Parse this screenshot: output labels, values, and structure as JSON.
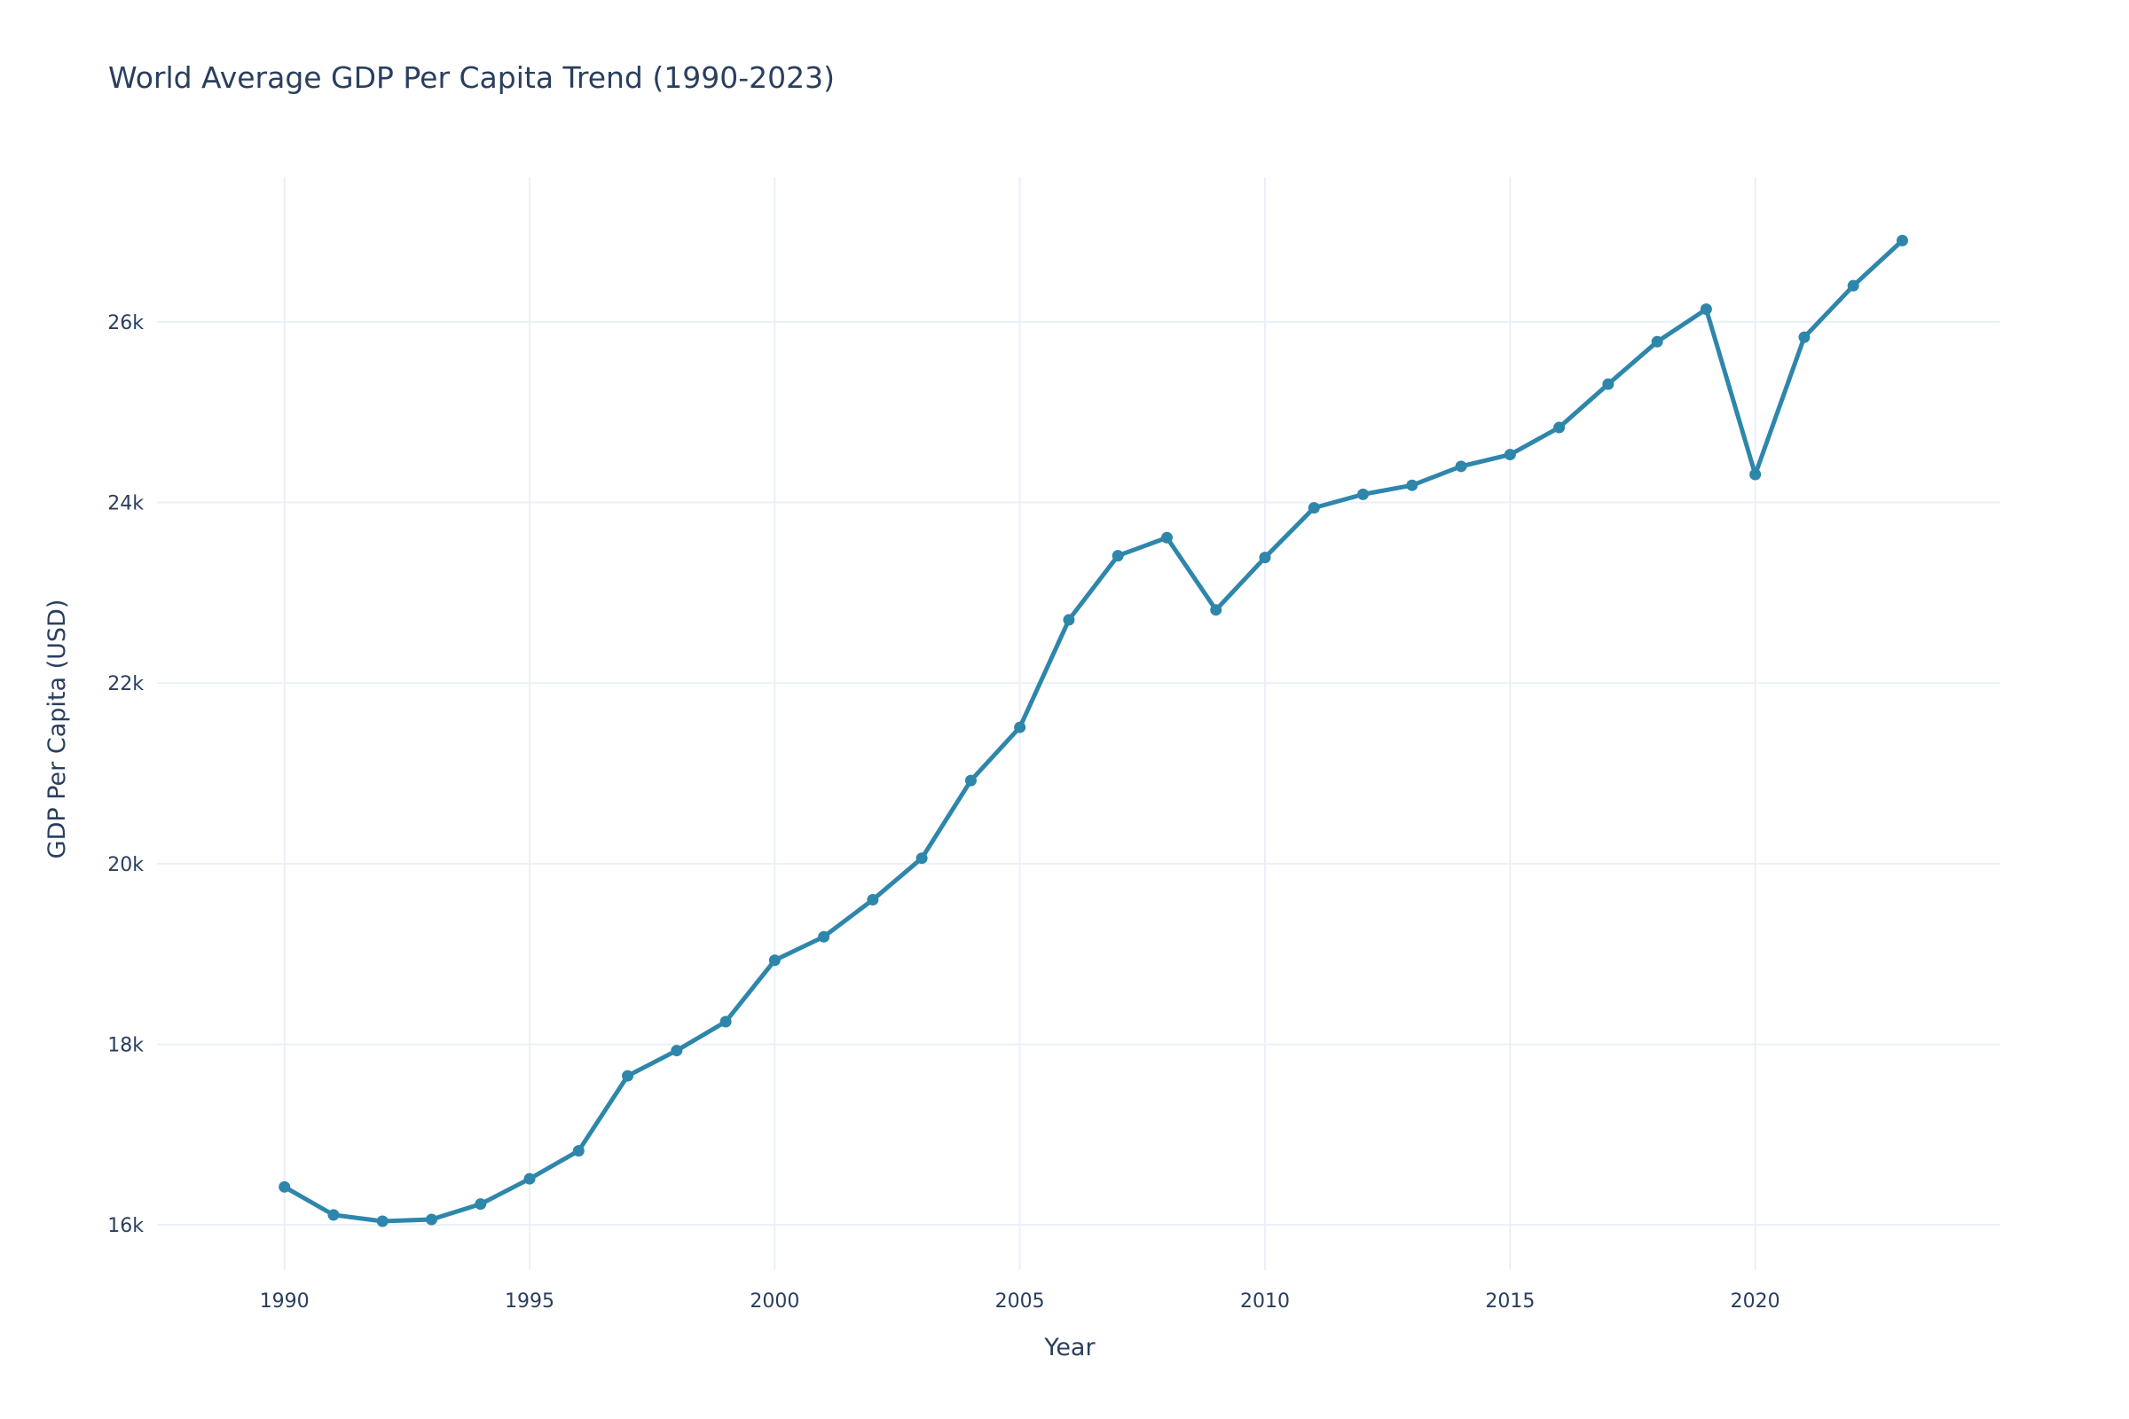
{
  "chart_data": {
    "type": "line",
    "title": "World Average GDP Per Capita Trend (1990-2023)",
    "xlabel": "Year",
    "ylabel": "GDP Per Capita (USD)",
    "xlim": [
      1987.4,
      2025
    ],
    "ylim": [
      15500,
      27600
    ],
    "x_ticks": [
      1990,
      1995,
      2000,
      2005,
      2010,
      2015,
      2020
    ],
    "y_ticks": [
      16000,
      18000,
      20000,
      22000,
      24000,
      26000
    ],
    "y_tick_labels": [
      "16k",
      "18k",
      "20k",
      "22k",
      "24k",
      "26k"
    ],
    "grid": true,
    "legend": "none",
    "series_color": "#2e86ab",
    "x": [
      1990,
      1991,
      1992,
      1993,
      1994,
      1995,
      1996,
      1997,
      1998,
      1999,
      2000,
      2001,
      2002,
      2003,
      2004,
      2005,
      2006,
      2007,
      2008,
      2009,
      2010,
      2011,
      2012,
      2013,
      2014,
      2015,
      2016,
      2017,
      2018,
      2019,
      2020,
      2021,
      2022,
      2023
    ],
    "series": [
      {
        "values": [
          16420,
          16110,
          16040,
          16060,
          16230,
          16510,
          16820,
          17650,
          17930,
          18250,
          18930,
          19190,
          19600,
          20060,
          20920,
          21510,
          22700,
          23410,
          23610,
          22810,
          23390,
          23940,
          24090,
          24190,
          24400,
          24530,
          24830,
          25310,
          25780,
          26140,
          24310,
          25830,
          26400,
          26900
        ]
      }
    ]
  }
}
